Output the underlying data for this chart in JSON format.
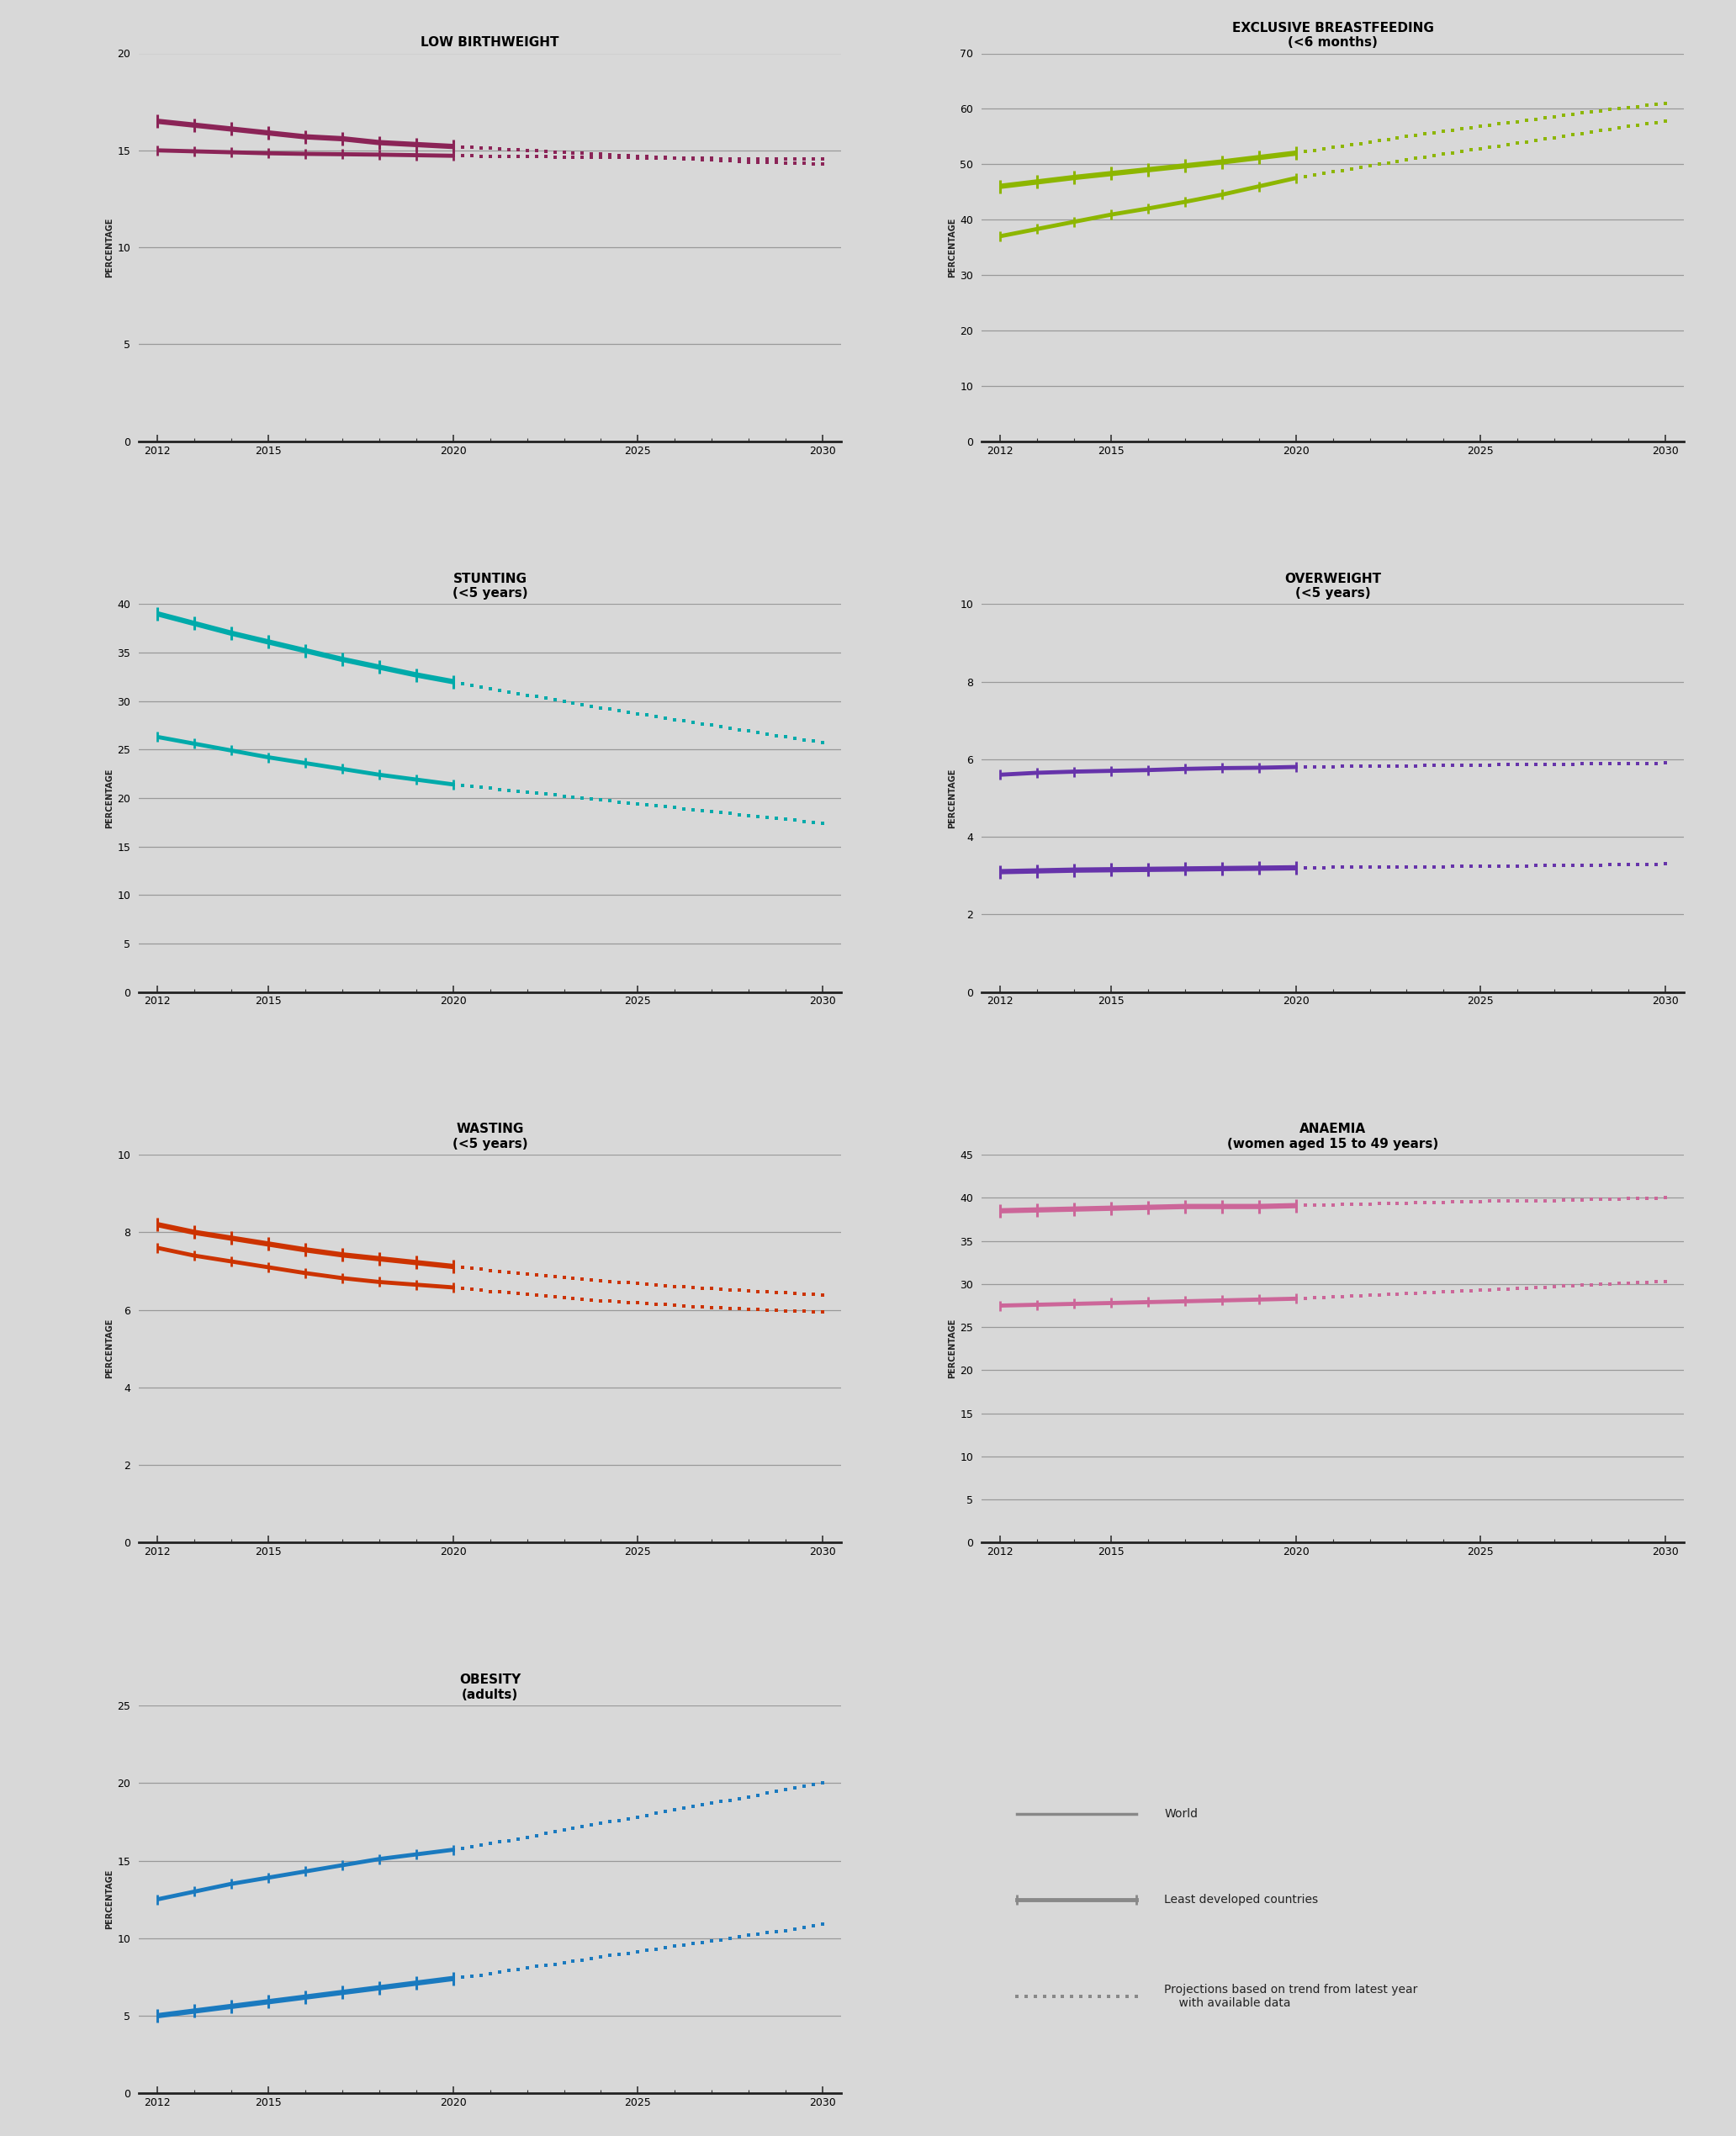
{
  "background_color": "#d8d8d8",
  "title_fontsize": 11,
  "subtitle_fontsize": 9,
  "axis_label_fontsize": 7,
  "tick_fontsize": 9,
  "low_birthweight": {
    "title": "LOW BIRTHWEIGHT",
    "subtitle": "",
    "ylim": [
      0,
      20
    ],
    "yticks": [
      0,
      5,
      10,
      15,
      20
    ],
    "color_world": "#8B2457",
    "color_ldc": "#8B2457",
    "world_solid_x": [
      2012,
      2013,
      2014,
      2015,
      2016,
      2017,
      2018,
      2019,
      2020
    ],
    "world_solid_y": [
      15.0,
      14.95,
      14.9,
      14.85,
      14.82,
      14.8,
      14.78,
      14.75,
      14.72
    ],
    "world_dash_x": [
      2020,
      2021,
      2022,
      2023,
      2024,
      2025,
      2026,
      2027,
      2028,
      2029,
      2030
    ],
    "world_dash_y": [
      14.72,
      14.7,
      14.68,
      14.66,
      14.64,
      14.62,
      14.6,
      14.58,
      14.57,
      14.56,
      14.55
    ],
    "ldc_solid_x": [
      2012,
      2013,
      2014,
      2015,
      2016,
      2017,
      2018,
      2019,
      2020
    ],
    "ldc_solid_y": [
      16.5,
      16.3,
      16.1,
      15.9,
      15.7,
      15.6,
      15.4,
      15.3,
      15.2
    ],
    "ldc_dash_x": [
      2020,
      2021,
      2022,
      2023,
      2024,
      2025,
      2026,
      2027,
      2028,
      2029,
      2030
    ],
    "ldc_dash_y": [
      15.2,
      15.1,
      15.0,
      14.9,
      14.8,
      14.7,
      14.6,
      14.5,
      14.4,
      14.35,
      14.3
    ]
  },
  "breastfeeding": {
    "title": "EXCLUSIVE BREASTFEEDING",
    "subtitle": "(<6 months)",
    "ylim": [
      0,
      70
    ],
    "yticks": [
      0,
      10,
      20,
      30,
      40,
      50,
      60,
      70
    ],
    "color_world": "#8db600",
    "color_ldc": "#8db600",
    "world_solid_x": [
      2012,
      2013,
      2014,
      2015,
      2016,
      2017,
      2018,
      2019,
      2020
    ],
    "world_solid_y": [
      37.0,
      38.3,
      39.6,
      40.9,
      42.0,
      43.2,
      44.5,
      46.0,
      47.5
    ],
    "world_dash_x": [
      2020,
      2021,
      2022,
      2023,
      2024,
      2025,
      2026,
      2027,
      2028,
      2029,
      2030
    ],
    "world_dash_y": [
      47.5,
      48.6,
      49.7,
      50.8,
      51.8,
      52.8,
      53.8,
      54.8,
      55.8,
      56.8,
      57.8
    ],
    "ldc_solid_x": [
      2012,
      2013,
      2014,
      2015,
      2016,
      2017,
      2018,
      2019,
      2020
    ],
    "ldc_solid_y": [
      46.0,
      46.8,
      47.6,
      48.3,
      49.0,
      49.7,
      50.4,
      51.2,
      52.0
    ],
    "ldc_dash_x": [
      2020,
      2021,
      2022,
      2023,
      2024,
      2025,
      2026,
      2027,
      2028,
      2029,
      2030
    ],
    "ldc_dash_y": [
      52.0,
      53.0,
      54.0,
      55.0,
      55.9,
      56.8,
      57.7,
      58.6,
      59.5,
      60.2,
      61.0
    ]
  },
  "stunting": {
    "title": "STUNTING",
    "subtitle": "(<5 years)",
    "ylim": [
      0,
      40
    ],
    "yticks": [
      0,
      5,
      10,
      15,
      20,
      25,
      30,
      35,
      40
    ],
    "color_world": "#00aaaa",
    "color_ldc": "#00aaaa",
    "world_solid_x": [
      2012,
      2013,
      2014,
      2015,
      2016,
      2017,
      2018,
      2019,
      2020
    ],
    "world_solid_y": [
      26.3,
      25.6,
      24.9,
      24.2,
      23.6,
      23.0,
      22.4,
      21.9,
      21.4
    ],
    "world_dash_x": [
      2020,
      2021,
      2022,
      2023,
      2024,
      2025,
      2026,
      2027,
      2028,
      2029,
      2030
    ],
    "world_dash_y": [
      21.4,
      21.0,
      20.6,
      20.2,
      19.8,
      19.4,
      19.0,
      18.6,
      18.2,
      17.8,
      17.4
    ],
    "ldc_solid_x": [
      2012,
      2013,
      2014,
      2015,
      2016,
      2017,
      2018,
      2019,
      2020
    ],
    "ldc_solid_y": [
      39.0,
      38.0,
      37.0,
      36.1,
      35.2,
      34.3,
      33.5,
      32.7,
      32.0
    ],
    "ldc_dash_x": [
      2020,
      2021,
      2022,
      2023,
      2024,
      2025,
      2026,
      2027,
      2028,
      2029,
      2030
    ],
    "ldc_dash_y": [
      32.0,
      31.3,
      30.6,
      30.0,
      29.3,
      28.7,
      28.1,
      27.5,
      26.9,
      26.3,
      25.7
    ]
  },
  "overweight": {
    "title": "OVERWEIGHT",
    "subtitle": "(<5 years)",
    "ylim": [
      0,
      10
    ],
    "yticks": [
      0,
      2,
      4,
      6,
      8,
      10
    ],
    "color_world": "#6633aa",
    "color_ldc": "#6633aa",
    "world_solid_x": [
      2012,
      2013,
      2014,
      2015,
      2016,
      2017,
      2018,
      2019,
      2020
    ],
    "world_solid_y": [
      5.6,
      5.65,
      5.68,
      5.7,
      5.72,
      5.75,
      5.77,
      5.78,
      5.8
    ],
    "world_dash_x": [
      2020,
      2021,
      2022,
      2023,
      2024,
      2025,
      2026,
      2027,
      2028,
      2029,
      2030
    ],
    "world_dash_y": [
      5.8,
      5.81,
      5.82,
      5.83,
      5.84,
      5.85,
      5.86,
      5.87,
      5.88,
      5.89,
      5.9
    ],
    "ldc_solid_x": [
      2012,
      2013,
      2014,
      2015,
      2016,
      2017,
      2018,
      2019,
      2020
    ],
    "ldc_solid_y": [
      3.1,
      3.12,
      3.14,
      3.15,
      3.16,
      3.17,
      3.18,
      3.19,
      3.2
    ],
    "ldc_dash_x": [
      2020,
      2021,
      2022,
      2023,
      2024,
      2025,
      2026,
      2027,
      2028,
      2029,
      2030
    ],
    "ldc_dash_y": [
      3.2,
      3.21,
      3.22,
      3.22,
      3.23,
      3.24,
      3.25,
      3.26,
      3.27,
      3.28,
      3.3
    ]
  },
  "wasting": {
    "title": "WASTING",
    "subtitle": "(<5 years)",
    "ylim": [
      0,
      10
    ],
    "yticks": [
      0,
      2,
      4,
      6,
      8,
      10
    ],
    "color_world": "#cc3300",
    "color_ldc": "#cc3300",
    "world_solid_x": [
      2012,
      2013,
      2014,
      2015,
      2016,
      2017,
      2018,
      2019,
      2020
    ],
    "world_solid_y": [
      7.6,
      7.4,
      7.25,
      7.1,
      6.95,
      6.82,
      6.72,
      6.65,
      6.58
    ],
    "world_dash_x": [
      2020,
      2021,
      2022,
      2023,
      2024,
      2025,
      2026,
      2027,
      2028,
      2029,
      2030
    ],
    "world_dash_y": [
      6.58,
      6.48,
      6.4,
      6.32,
      6.24,
      6.18,
      6.12,
      6.06,
      6.02,
      5.98,
      5.95
    ],
    "ldc_solid_x": [
      2012,
      2013,
      2014,
      2015,
      2016,
      2017,
      2018,
      2019,
      2020
    ],
    "ldc_solid_y": [
      8.2,
      8.0,
      7.85,
      7.7,
      7.55,
      7.42,
      7.32,
      7.22,
      7.12
    ],
    "ldc_dash_x": [
      2020,
      2021,
      2022,
      2023,
      2024,
      2025,
      2026,
      2027,
      2028,
      2029,
      2030
    ],
    "ldc_dash_y": [
      7.12,
      7.02,
      6.92,
      6.83,
      6.75,
      6.68,
      6.61,
      6.55,
      6.49,
      6.44,
      6.38
    ]
  },
  "anaemia": {
    "title": "ANAEMIA",
    "subtitle": "(women aged 15 to 49 years)",
    "ylim": [
      0,
      45
    ],
    "yticks": [
      0,
      5,
      10,
      15,
      20,
      25,
      30,
      35,
      40,
      45
    ],
    "color_world": "#cc6699",
    "color_ldc": "#cc6699",
    "world_solid_x": [
      2012,
      2013,
      2014,
      2015,
      2016,
      2017,
      2018,
      2019,
      2020
    ],
    "world_solid_y": [
      27.5,
      27.6,
      27.7,
      27.8,
      27.9,
      28.0,
      28.1,
      28.2,
      28.3
    ],
    "world_dash_x": [
      2020,
      2021,
      2022,
      2023,
      2024,
      2025,
      2026,
      2027,
      2028,
      2029,
      2030
    ],
    "world_dash_y": [
      28.3,
      28.5,
      28.7,
      28.9,
      29.1,
      29.3,
      29.5,
      29.7,
      29.9,
      30.1,
      30.3
    ],
    "ldc_solid_x": [
      2012,
      2013,
      2014,
      2015,
      2016,
      2017,
      2018,
      2019,
      2020
    ],
    "ldc_solid_y": [
      38.5,
      38.6,
      38.7,
      38.8,
      38.9,
      39.0,
      39.0,
      39.0,
      39.1
    ],
    "ldc_dash_x": [
      2020,
      2021,
      2022,
      2023,
      2024,
      2025,
      2026,
      2027,
      2028,
      2029,
      2030
    ],
    "ldc_dash_y": [
      39.1,
      39.2,
      39.3,
      39.4,
      39.5,
      39.6,
      39.65,
      39.7,
      39.8,
      39.9,
      40.0
    ]
  },
  "obesity": {
    "title": "OBESITY",
    "subtitle": "(adults)",
    "ylim": [
      0,
      25
    ],
    "yticks": [
      0,
      5,
      10,
      15,
      20,
      25
    ],
    "color_world": "#1a7abf",
    "color_ldc": "#1a7abf",
    "world_solid_x": [
      2012,
      2013,
      2014,
      2015,
      2016,
      2017,
      2018,
      2019,
      2020
    ],
    "world_solid_y": [
      12.5,
      13.0,
      13.5,
      13.9,
      14.3,
      14.7,
      15.1,
      15.4,
      15.7
    ],
    "world_dash_x": [
      2020,
      2021,
      2022,
      2023,
      2024,
      2025,
      2026,
      2027,
      2028,
      2029,
      2030
    ],
    "world_dash_y": [
      15.7,
      16.1,
      16.5,
      17.0,
      17.4,
      17.8,
      18.3,
      18.7,
      19.1,
      19.6,
      20.0
    ],
    "ldc_solid_x": [
      2012,
      2013,
      2014,
      2015,
      2016,
      2017,
      2018,
      2019,
      2020
    ],
    "ldc_solid_y": [
      5.0,
      5.3,
      5.6,
      5.9,
      6.2,
      6.5,
      6.8,
      7.1,
      7.4
    ],
    "ldc_dash_x": [
      2020,
      2021,
      2022,
      2023,
      2024,
      2025,
      2026,
      2027,
      2028,
      2029,
      2030
    ],
    "ldc_dash_y": [
      7.4,
      7.7,
      8.1,
      8.4,
      8.8,
      9.1,
      9.5,
      9.8,
      10.2,
      10.5,
      10.9
    ]
  },
  "legend_world_label": "World",
  "legend_ldc_label": "Least developed countries",
  "legend_proj_label": "Projections based on trend from latest year\n    with available data",
  "ylabel": "PERCENTAGE",
  "xticks": [
    2012,
    2015,
    2020,
    2025,
    2030
  ]
}
